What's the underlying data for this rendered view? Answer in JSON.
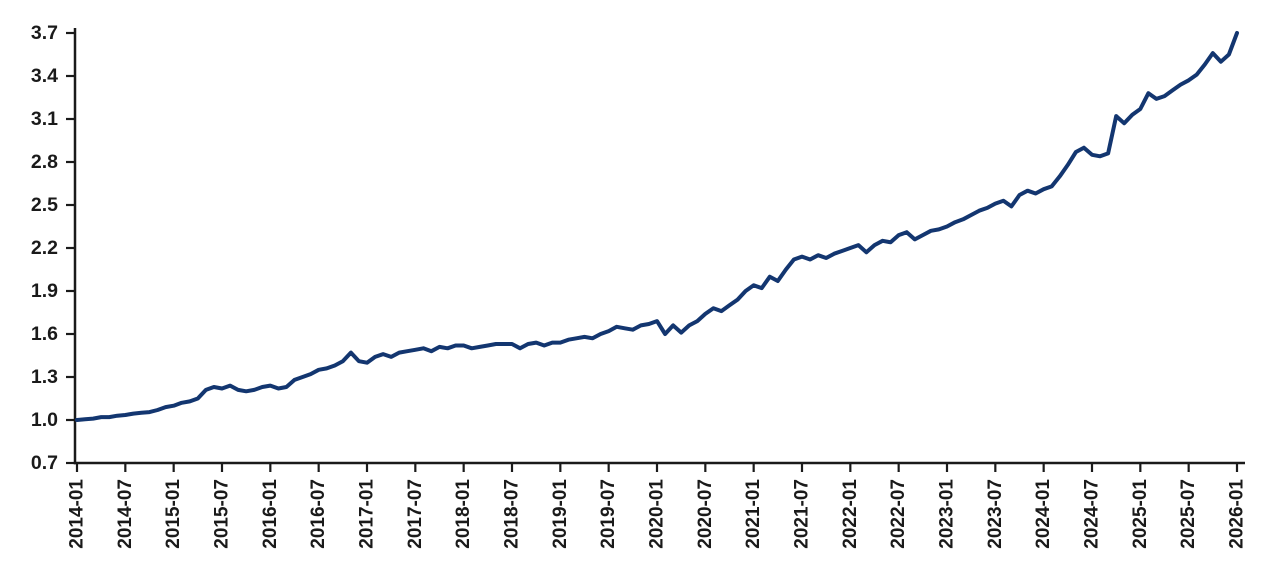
{
  "chart_data": {
    "type": "line",
    "title": "",
    "xlabel": "",
    "ylabel": "",
    "background_color": "#ffffff",
    "axis_color": "#1a1a1a",
    "tick_label_color": "#1a1a1a",
    "grid": false,
    "legend": "none",
    "ylim": [
      0.7,
      3.7
    ],
    "y_ticks": [
      0.7,
      1.0,
      1.3,
      1.6,
      1.9,
      2.2,
      2.5,
      2.8,
      3.1,
      3.4,
      3.7
    ],
    "x_tick_labels": [
      "2014-01",
      "2014-07",
      "2015-01",
      "2015-07",
      "2016-01",
      "2016-07",
      "2017-01",
      "2017-07",
      "2018-01",
      "2018-07",
      "2019-01",
      "2019-07",
      "2020-01",
      "2020-07",
      "2021-01",
      "2021-07",
      "2022-01",
      "2022-07",
      "2023-01",
      "2023-07",
      "2024-01",
      "2024-07",
      "2025-01",
      "2025-07",
      "2026-01"
    ],
    "x_label_every_n_months": 6,
    "series": [
      {
        "name": "cumulative-growth-index",
        "color": "#133670",
        "start": "2014-01",
        "frequency": "monthly",
        "values": [
          1.0,
          1.005,
          1.01,
          1.02,
          1.02,
          1.03,
          1.035,
          1.045,
          1.05,
          1.055,
          1.07,
          1.09,
          1.1,
          1.12,
          1.13,
          1.15,
          1.21,
          1.23,
          1.22,
          1.24,
          1.21,
          1.2,
          1.21,
          1.23,
          1.24,
          1.22,
          1.23,
          1.28,
          1.3,
          1.32,
          1.35,
          1.36,
          1.38,
          1.41,
          1.47,
          1.41,
          1.4,
          1.44,
          1.46,
          1.44,
          1.47,
          1.48,
          1.49,
          1.5,
          1.48,
          1.51,
          1.5,
          1.52,
          1.52,
          1.5,
          1.51,
          1.52,
          1.53,
          1.53,
          1.53,
          1.5,
          1.53,
          1.54,
          1.52,
          1.54,
          1.54,
          1.56,
          1.57,
          1.58,
          1.57,
          1.6,
          1.62,
          1.65,
          1.64,
          1.63,
          1.66,
          1.67,
          1.69,
          1.6,
          1.66,
          1.61,
          1.66,
          1.69,
          1.74,
          1.78,
          1.76,
          1.8,
          1.84,
          1.9,
          1.94,
          1.92,
          2.0,
          1.97,
          2.05,
          2.12,
          2.14,
          2.12,
          2.15,
          2.13,
          2.16,
          2.18,
          2.2,
          2.22,
          2.17,
          2.22,
          2.25,
          2.24,
          2.29,
          2.31,
          2.26,
          2.29,
          2.32,
          2.33,
          2.35,
          2.38,
          2.4,
          2.43,
          2.46,
          2.48,
          2.51,
          2.53,
          2.49,
          2.57,
          2.6,
          2.58,
          2.61,
          2.63,
          2.7,
          2.78,
          2.87,
          2.9,
          2.85,
          2.84,
          2.86,
          3.12,
          3.07,
          3.13,
          3.17,
          3.28,
          3.24,
          3.26,
          3.3,
          3.34,
          3.37,
          3.41,
          3.48,
          3.56,
          3.5,
          3.55,
          3.7
        ]
      }
    ]
  }
}
